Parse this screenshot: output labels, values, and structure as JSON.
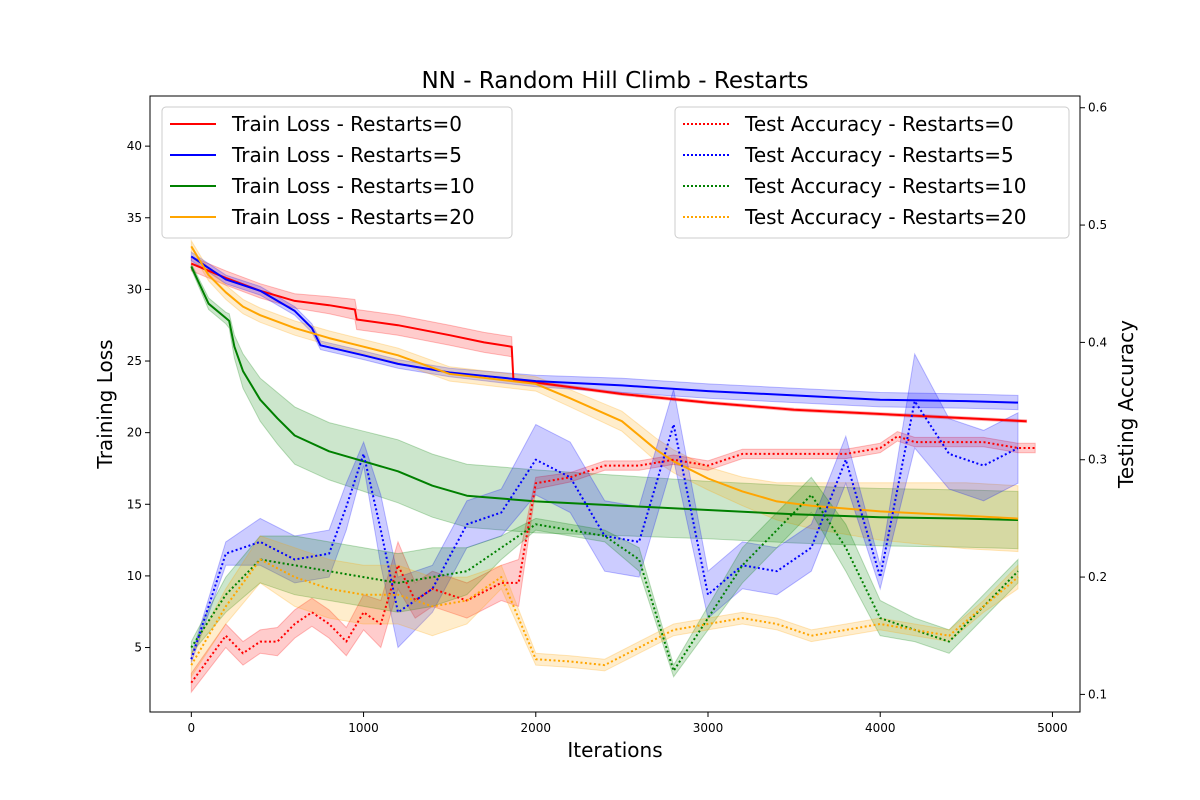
{
  "chart_data": {
    "type": "line",
    "title": "NN - Random Hill Climb - Restarts",
    "xlabel": "Iterations",
    "ylabel": "Training Loss",
    "y2label": "Testing Accuracy",
    "xlim": [
      -240,
      5160
    ],
    "ylim": [
      0.5,
      43.5
    ],
    "y2lim": [
      0.085,
      0.61
    ],
    "xticks": [
      "0",
      "1000",
      "2000",
      "3000",
      "4000",
      "5000"
    ],
    "yticks": [
      "5",
      "10",
      "15",
      "20",
      "25",
      "30",
      "35",
      "40"
    ],
    "y2ticks": [
      "0.1",
      "0.2",
      "0.3",
      "0.4",
      "0.5",
      "0.6"
    ],
    "grid": false,
    "legends": [
      {
        "placement": "upper-left",
        "entries": [
          "Train Loss - Restarts=0",
          "Train Loss - Restarts=5",
          "Train Loss - Restarts=10",
          "Train Loss - Restarts=20"
        ]
      },
      {
        "placement": "upper-right",
        "entries": [
          "Test Accuracy - Restarts=0",
          "Test Accuracy - Restarts=5",
          "Test Accuracy - Restarts=10",
          "Test Accuracy - Restarts=20"
        ]
      }
    ],
    "colors": {
      "restarts_0": "#ff0000",
      "restarts_5": "#0000ff",
      "restarts_10": "#008000",
      "restarts_20": "#ffa500"
    },
    "train_loss": [
      {
        "name": "Train Loss - Restarts=0",
        "color": "#ff0000",
        "x": [
          0,
          200,
          400,
          600,
          800,
          950,
          960,
          1200,
          1500,
          1700,
          1860,
          1870,
          2000,
          2500,
          3000,
          3500,
          4000,
          4500,
          4850
        ],
        "y": [
          31.8,
          30.8,
          29.9,
          29.2,
          28.9,
          28.6,
          27.9,
          27.5,
          26.8,
          26.3,
          26.0,
          23.7,
          23.5,
          22.7,
          22.1,
          21.6,
          21.3,
          21.0,
          20.8
        ],
        "band": [
          0.5,
          0.5,
          0.5,
          0.5,
          0.6,
          0.7,
          0.7,
          0.7,
          0.7,
          0.7,
          0.7,
          0.1,
          0.1,
          0.1,
          0.1,
          0.1,
          0.1,
          0.1,
          0.1
        ]
      },
      {
        "name": "Train Loss - Restarts=5",
        "color": "#0000ff",
        "x": [
          0,
          200,
          400,
          600,
          700,
          750,
          1000,
          1200,
          1500,
          2000,
          2500,
          3000,
          3500,
          4000,
          4500,
          4800
        ],
        "y": [
          32.3,
          30.7,
          29.9,
          28.5,
          27.3,
          26.1,
          25.4,
          24.8,
          24.2,
          23.6,
          23.3,
          22.9,
          22.6,
          22.3,
          22.2,
          22.1
        ],
        "band": [
          0.3,
          0.3,
          0.3,
          0.3,
          0.3,
          0.3,
          0.3,
          0.3,
          0.3,
          0.4,
          0.5,
          0.5,
          0.5,
          0.5,
          0.5,
          0.5
        ]
      },
      {
        "name": "Train Loss - Restarts=10",
        "color": "#008000",
        "x": [
          0,
          100,
          200,
          220,
          250,
          300,
          400,
          500,
          600,
          800,
          1000,
          1200,
          1400,
          1600,
          2000,
          2500,
          3000,
          3500,
          4000,
          4500,
          4800
        ],
        "y": [
          31.6,
          29.0,
          28.0,
          27.8,
          26.0,
          24.3,
          22.3,
          21.0,
          19.8,
          18.7,
          18.0,
          17.3,
          16.3,
          15.6,
          15.2,
          14.9,
          14.6,
          14.3,
          14.1,
          14.0,
          13.9
        ],
        "band": [
          0.2,
          0.4,
          0.4,
          0.5,
          0.8,
          1.2,
          1.5,
          1.8,
          2.0,
          2.0,
          2.1,
          2.2,
          2.2,
          2.2,
          2.2,
          2.1,
          2.0,
          2.0,
          2.0,
          2.0,
          2.0
        ]
      },
      {
        "name": "Train Loss - Restarts=20",
        "color": "#ffa500",
        "x": [
          0,
          100,
          200,
          300,
          400,
          600,
          800,
          1000,
          1200,
          1500,
          2000,
          2200,
          2500,
          2700,
          2800,
          3000,
          3200,
          3400,
          3600,
          4000,
          4500,
          4800
        ],
        "y": [
          33.0,
          31.0,
          29.8,
          28.8,
          28.2,
          27.3,
          26.6,
          26.0,
          25.4,
          24.1,
          23.4,
          22.4,
          20.8,
          18.8,
          18.0,
          16.8,
          15.9,
          15.2,
          14.9,
          14.5,
          14.2,
          14.0
        ],
        "band": [
          0.4,
          0.4,
          0.5,
          0.5,
          0.5,
          0.5,
          0.5,
          0.5,
          0.5,
          0.5,
          0.5,
          0.6,
          0.7,
          0.8,
          0.8,
          0.8,
          1.0,
          1.3,
          1.6,
          2.0,
          2.3,
          2.3
        ]
      }
    ],
    "test_accuracy": [
      {
        "name": "Test Accuracy - Restarts=0",
        "color": "#ff0000",
        "x": [
          0,
          200,
          300,
          400,
          500,
          600,
          700,
          800,
          900,
          1000,
          1100,
          1200,
          1300,
          1400,
          1600,
          1800,
          1900,
          2000,
          2200,
          2400,
          2600,
          2800,
          3000,
          3200,
          3400,
          3600,
          3800,
          4000,
          4100,
          4200,
          4400,
          4600,
          4800,
          4900
        ],
        "y": [
          0.11,
          0.15,
          0.135,
          0.145,
          0.145,
          0.16,
          0.17,
          0.16,
          0.145,
          0.17,
          0.16,
          0.21,
          0.18,
          0.19,
          0.18,
          0.195,
          0.195,
          0.28,
          0.285,
          0.295,
          0.295,
          0.3,
          0.295,
          0.305,
          0.305,
          0.305,
          0.305,
          0.31,
          0.32,
          0.315,
          0.315,
          0.315,
          0.31,
          0.31
        ],
        "band": [
          0.008,
          0.01,
          0.01,
          0.01,
          0.012,
          0.012,
          0.012,
          0.012,
          0.012,
          0.015,
          0.02,
          0.02,
          0.015,
          0.015,
          0.015,
          0.015,
          0.02,
          0.005,
          0.004,
          0.004,
          0.004,
          0.004,
          0.004,
          0.004,
          0.004,
          0.004,
          0.004,
          0.004,
          0.004,
          0.004,
          0.004,
          0.004,
          0.004,
          0.004
        ]
      },
      {
        "name": "Test Accuracy - Restarts=5",
        "color": "#0000ff",
        "x": [
          0,
          200,
          400,
          600,
          800,
          900,
          1000,
          1100,
          1200,
          1400,
          1600,
          1800,
          2000,
          2200,
          2400,
          2600,
          2800,
          3000,
          3200,
          3400,
          3600,
          3800,
          4000,
          4200,
          4400,
          4600,
          4800
        ],
        "y": [
          0.13,
          0.22,
          0.23,
          0.215,
          0.22,
          0.26,
          0.305,
          0.24,
          0.17,
          0.19,
          0.245,
          0.255,
          0.3,
          0.285,
          0.235,
          0.23,
          0.33,
          0.185,
          0.21,
          0.205,
          0.225,
          0.3,
          0.2,
          0.35,
          0.305,
          0.295,
          0.31
        ],
        "band": [
          0.003,
          0.01,
          0.02,
          0.02,
          0.02,
          0.02,
          0.01,
          0.03,
          0.03,
          0.02,
          0.02,
          0.02,
          0.03,
          0.03,
          0.03,
          0.03,
          0.03,
          0.02,
          0.02,
          0.02,
          0.02,
          0.02,
          0.01,
          0.04,
          0.03,
          0.03,
          0.03
        ]
      },
      {
        "name": "Test Accuracy - Restarts=10",
        "color": "#008000",
        "x": [
          0,
          200,
          400,
          600,
          800,
          1000,
          1200,
          1400,
          1600,
          1800,
          2000,
          2200,
          2400,
          2600,
          2800,
          3000,
          3200,
          3400,
          3600,
          3800,
          4000,
          4200,
          4400,
          4600,
          4800
        ],
        "y": [
          0.14,
          0.185,
          0.215,
          0.21,
          0.205,
          0.2,
          0.195,
          0.2,
          0.205,
          0.225,
          0.245,
          0.24,
          0.235,
          0.215,
          0.12,
          0.165,
          0.21,
          0.24,
          0.27,
          0.225,
          0.165,
          0.155,
          0.145,
          0.175,
          0.205
        ],
        "band": [
          0.005,
          0.015,
          0.02,
          0.025,
          0.025,
          0.025,
          0.025,
          0.025,
          0.02,
          0.01,
          0.005,
          0.005,
          0.005,
          0.01,
          0.005,
          0.01,
          0.015,
          0.015,
          0.015,
          0.02,
          0.015,
          0.01,
          0.01,
          0.01,
          0.01
        ]
      },
      {
        "name": "Test Accuracy - Restarts=20",
        "color": "#ffa500",
        "x": [
          0,
          200,
          400,
          600,
          800,
          1000,
          1200,
          1400,
          1600,
          1800,
          2000,
          2200,
          2400,
          2600,
          2800,
          3000,
          3200,
          3400,
          3600,
          3800,
          4000,
          4200,
          4400,
          4600,
          4800
        ],
        "y": [
          0.125,
          0.175,
          0.215,
          0.2,
          0.19,
          0.185,
          0.185,
          0.175,
          0.18,
          0.2,
          0.13,
          0.128,
          0.125,
          0.14,
          0.155,
          0.16,
          0.165,
          0.16,
          0.15,
          0.155,
          0.16,
          0.155,
          0.15,
          0.175,
          0.2
        ],
        "band": [
          0.01,
          0.015,
          0.02,
          0.025,
          0.025,
          0.025,
          0.025,
          0.025,
          0.02,
          0.01,
          0.005,
          0.005,
          0.005,
          0.005,
          0.005,
          0.005,
          0.005,
          0.005,
          0.005,
          0.005,
          0.005,
          0.005,
          0.005,
          0.005,
          0.01
        ]
      }
    ]
  }
}
